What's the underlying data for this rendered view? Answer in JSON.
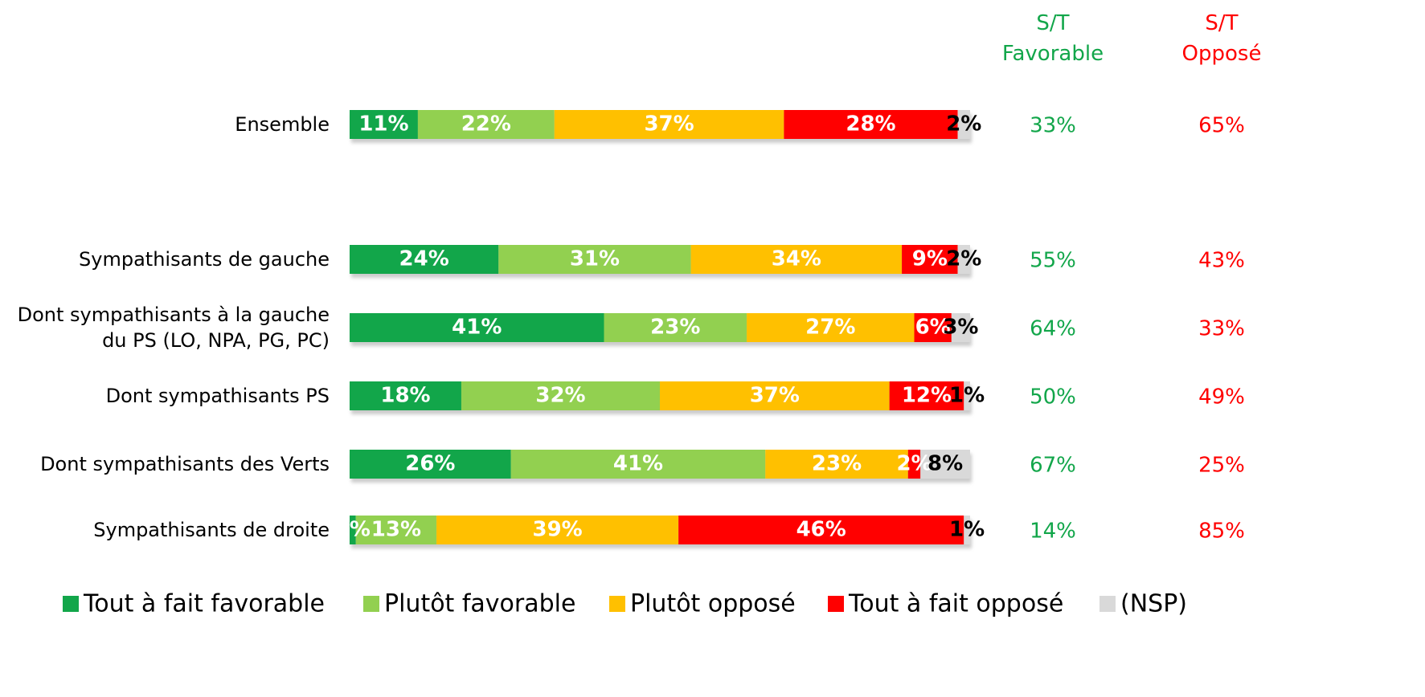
{
  "chart_data": {
    "type": "stacked-bar-horizontal",
    "categories": [
      "Ensemble",
      "Sympathisants de gauche",
      "Dont sympathisants à la gauche\ndu PS (LO, NPA, PG, PC)",
      "Dont sympathisants PS",
      "Dont sympathisants des Verts",
      "Sympathisants de droite"
    ],
    "xlim": [
      0,
      100
    ],
    "series": [
      {
        "name": "Tout à fait favorable",
        "color": "#12a64a",
        "label_color": "#ffffff",
        "values": [
          11,
          24,
          41,
          18,
          26,
          1
        ],
        "value_labels": [
          "11%",
          "24%",
          "41%",
          "18%",
          "26%",
          "1%"
        ]
      },
      {
        "name": "Plutôt favorable",
        "color": "#92d050",
        "label_color": "#ffffff",
        "values": [
          22,
          31,
          23,
          32,
          41,
          13
        ],
        "value_labels": [
          "22%",
          "31%",
          "23%",
          "32%",
          "41%",
          "13%"
        ]
      },
      {
        "name": "Plutôt opposé",
        "color": "#ffc000",
        "label_color": "#ffffff",
        "values": [
          37,
          34,
          27,
          37,
          23,
          39
        ],
        "value_labels": [
          "37%",
          "34%",
          "27%",
          "37%",
          "23%",
          "39%"
        ]
      },
      {
        "name": "Tout à fait opposé",
        "color": "#ff0000",
        "label_color": "#ffffff",
        "values": [
          28,
          9,
          6,
          12,
          2,
          46
        ],
        "value_labels": [
          "28%",
          "9%",
          "6%",
          "12%",
          "2%",
          "46%"
        ]
      },
      {
        "name": "(NSP)",
        "color": "#d9d9d9",
        "label_color": "#000000",
        "values": [
          2,
          2,
          3,
          1,
          8,
          1
        ],
        "value_labels": [
          "2%",
          "2%",
          "3%",
          "1%",
          "8%",
          "1%"
        ]
      }
    ],
    "columns": [
      {
        "name": "S/T\nFavorable",
        "color": "#12a64a",
        "values": [
          33,
          55,
          64,
          50,
          67,
          14
        ],
        "value_labels": [
          "33%",
          "55%",
          "64%",
          "50%",
          "67%",
          "14%"
        ]
      },
      {
        "name": "S/T\nOpposé",
        "color": "#ff0000",
        "values": [
          65,
          43,
          33,
          49,
          25,
          85
        ],
        "value_labels": [
          "65%",
          "43%",
          "33%",
          "49%",
          "25%",
          "85%"
        ]
      }
    ],
    "legend": "bottom"
  }
}
